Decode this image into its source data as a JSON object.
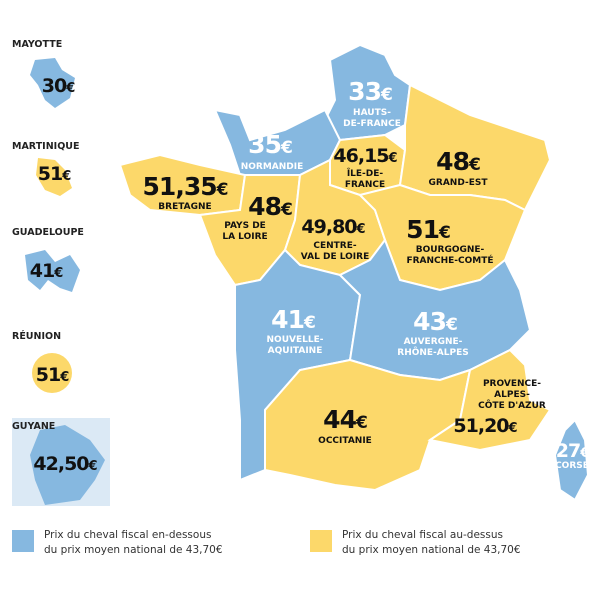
{
  "currency": "€",
  "regions": [
    {
      "name": [
        "HAUTS-",
        "DE-FRANCE"
      ],
      "price": "33"
    },
    {
      "name": [
        "NORMANDIE"
      ],
      "price": "35"
    },
    {
      "name": [
        "ÎLE-DE-",
        "FRANCE"
      ],
      "price": "46,15"
    },
    {
      "name": [
        "GRAND-EST"
      ],
      "price": "48"
    },
    {
      "name": [
        "BRETAGNE"
      ],
      "price": "51,35"
    },
    {
      "name": [
        "PAYS DE",
        "LA LOIRE"
      ],
      "price": "48"
    },
    {
      "name": [
        "CENTRE-",
        "VAL DE LOIRE"
      ],
      "price": "49,80"
    },
    {
      "name": [
        "BOURGOGNE-",
        "FRANCHE-COMTÉ"
      ],
      "price": "51"
    },
    {
      "name": [
        "NOUVELLE-",
        "AQUITAINE"
      ],
      "price": "41"
    },
    {
      "name": [
        "AUVERGNE-",
        "RHÔNE-ALPES"
      ],
      "price": "43"
    },
    {
      "name": [
        "OCCITANIE"
      ],
      "price": "44"
    },
    {
      "name": [
        "PROVENCE-",
        "ALPES-",
        "CÔTE D'AZUR"
      ],
      "price": "51,20"
    },
    {
      "name": [
        "CORSE"
      ],
      "price": "27"
    }
  ],
  "overseas": [
    {
      "name": "MAYOTTE",
      "price": "30"
    },
    {
      "name": "MARTINIQUE",
      "price": "51"
    },
    {
      "name": "GUADELOUPE",
      "price": "41"
    },
    {
      "name": "RÉUNION",
      "price": "51"
    },
    {
      "name": "GUYANE",
      "price": "42,50"
    }
  ],
  "legend": [
    {
      "lines": [
        "Prix du cheval fiscal en-dessous",
        "du prix moyen national de 43,70€"
      ]
    },
    {
      "lines": [
        "Prix du cheval fiscal au-dessus",
        "du prix moyen national de 43,70€"
      ]
    }
  ]
}
